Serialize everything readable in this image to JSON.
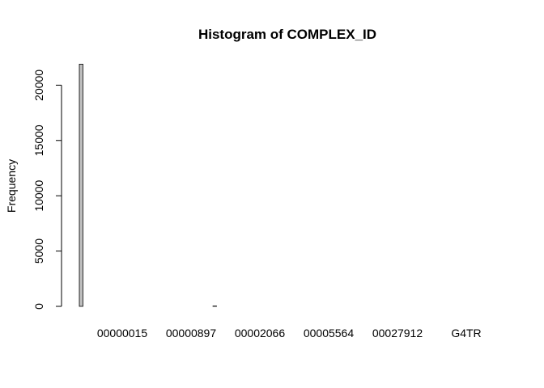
{
  "chart_data": {
    "type": "bar",
    "title": "Histogram of COMPLEX_ID",
    "xlabel": "",
    "ylabel": "Frequency",
    "ylim": [
      0,
      22000
    ],
    "yticks": [
      0,
      5000,
      10000,
      15000,
      20000
    ],
    "x_tick_labels": [
      "00000015",
      "00000897",
      "00002066",
      "00005564",
      "00027912",
      "G4TR"
    ],
    "bar_count": 115,
    "values": [
      21900,
      0,
      0,
      0,
      0,
      0,
      0,
      0,
      0,
      0,
      0,
      0,
      0,
      0,
      0,
      0,
      0,
      0,
      0,
      0,
      0,
      0,
      0,
      0,
      0,
      0,
      0,
      0,
      0,
      0,
      0,
      0,
      0,
      0,
      0,
      0,
      0,
      30,
      0,
      0,
      0,
      0,
      0,
      0,
      0,
      0,
      0,
      0,
      0,
      0,
      0,
      0,
      0,
      0,
      0,
      0,
      0,
      0,
      0,
      0,
      0,
      0,
      0,
      0,
      0,
      0,
      0,
      0,
      0,
      0,
      0,
      0,
      0,
      0,
      0,
      0,
      0,
      0,
      0,
      0,
      0,
      0,
      0,
      0,
      0,
      0,
      0,
      0,
      0,
      0,
      0,
      0,
      0,
      0,
      0,
      0,
      0,
      0,
      0,
      0,
      0,
      0,
      0,
      0,
      0,
      0,
      0,
      0,
      0,
      0,
      0,
      0,
      0,
      0,
      0
    ],
    "bar_fill": "#bebebe",
    "bar_stroke": "#000000",
    "grid": false,
    "legend": "none"
  }
}
